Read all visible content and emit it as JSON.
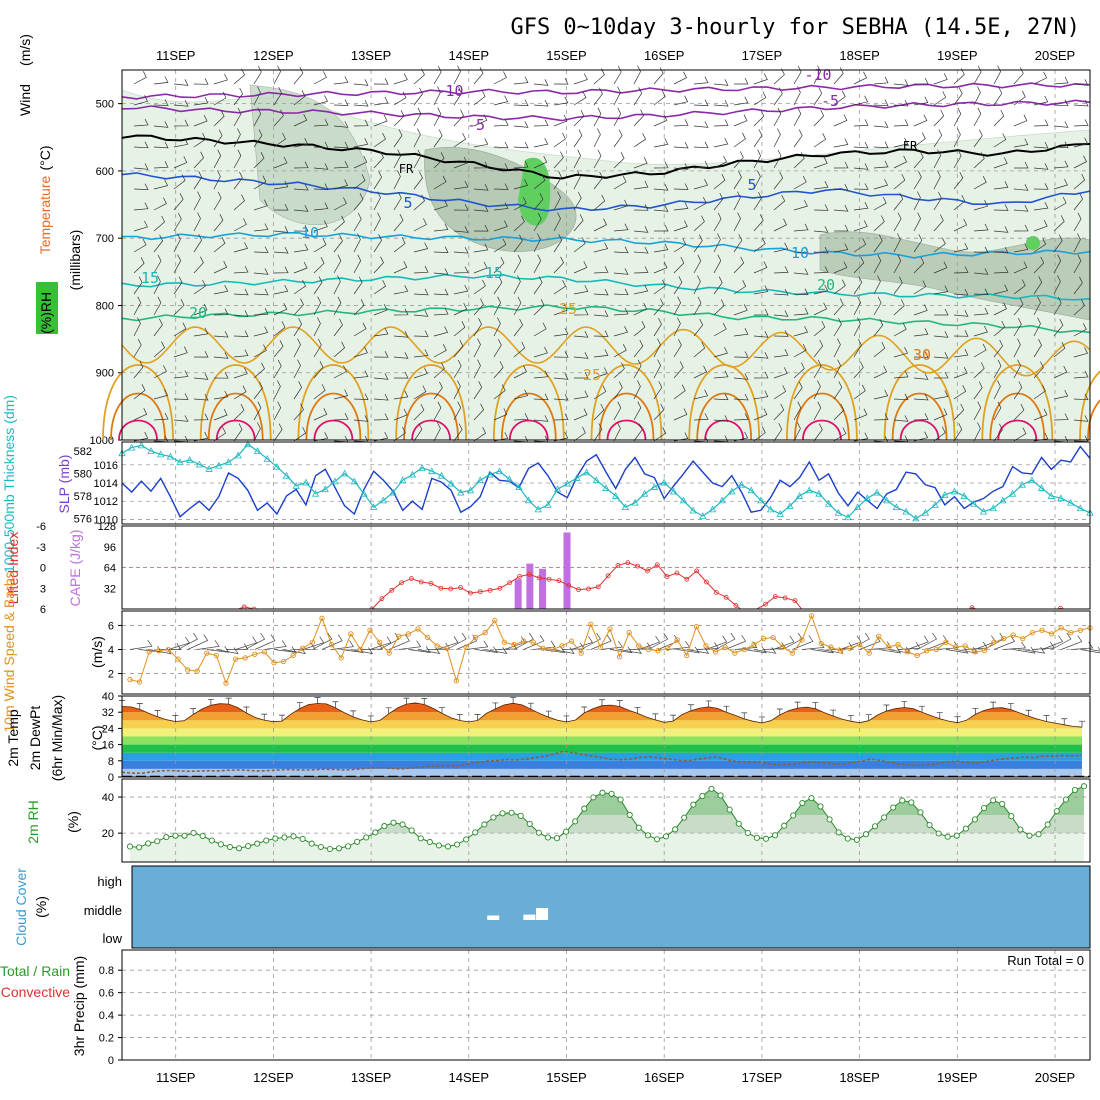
{
  "title": "GFS 0~10day 3-hourly for SEBHA (14.5E, 27N)",
  "date_labels": [
    "11SEP",
    "12SEP",
    "13SEP",
    "14SEP",
    "15SEP",
    "16SEP",
    "17SEP",
    "18SEP",
    "19SEP",
    "20SEP"
  ],
  "colors": {
    "temp_minus10": "#8a2aa8",
    "freezing": "#000000",
    "temp5": "#2255cc",
    "temp10": "#1aa0d8",
    "temp15": "#18b8b8",
    "temp20": "#20b880",
    "temp25": "#e0a020",
    "temp30": "#e07810",
    "temp35": "#e0106a",
    "rh_fill": "#e6f2e6",
    "slp": "#1a3fcc",
    "thickness": "#20b8c0",
    "li": "#e03030",
    "cape": "#c070e0",
    "wind_speed": "#e09020",
    "cloud": "#6aaed6"
  },
  "chart_data": [
    {
      "type": "line",
      "panel": "upper-air",
      "y_title_parts": [
        "Wind",
        "(m/s)",
        "Temperature",
        "(°C)",
        "RH",
        "(%)"
      ],
      "ylabel": "(millibars)",
      "y_ticks": [
        500,
        600,
        700,
        800,
        900,
        1000
      ],
      "ylim": [
        1000,
        450
      ],
      "contour_labels": [
        "-10",
        "-10",
        "-5",
        "-5",
        "FR",
        "FR",
        "5",
        "5",
        "10",
        "10",
        "15",
        "15",
        "20",
        "20",
        "25",
        "25",
        "30"
      ],
      "series": [
        {
          "name": "-10",
          "values_mb": [
            490,
            488,
            486,
            484,
            482,
            483,
            480,
            478,
            476,
            474,
            473,
            472
          ]
        },
        {
          "name": "-5",
          "values_mb": [
            505,
            510,
            512,
            515,
            520,
            522,
            518,
            512,
            506,
            502,
            500,
            498
          ]
        },
        {
          "name": "FR",
          "values_mb": [
            548,
            555,
            562,
            572,
            590,
            610,
            604,
            588,
            575,
            570,
            575,
            560
          ]
        },
        {
          "name": "5",
          "values_mb": [
            605,
            612,
            620,
            632,
            648,
            658,
            652,
            640,
            628,
            640,
            650,
            630
          ]
        },
        {
          "name": "10",
          "values_mb": [
            700,
            696,
            694,
            698,
            700,
            702,
            706,
            714,
            722,
            726,
            722,
            720
          ]
        },
        {
          "name": "15",
          "values_mb": [
            770,
            768,
            764,
            760,
            756,
            760,
            770,
            778,
            782,
            785,
            786,
            790
          ]
        },
        {
          "name": "20",
          "values_mb": [
            820,
            815,
            812,
            808,
            805,
            802,
            808,
            818,
            820,
            825,
            830,
            840
          ]
        }
      ]
    },
    {
      "type": "line",
      "panel": "slp-thickness",
      "ylabel_left": "1000-500mb Thickness (dm)",
      "ylabel_right": "SLP (mb)",
      "y_ticks_left": [
        576,
        578,
        580,
        582
      ],
      "y_ticks_right": [
        1010,
        1012,
        1014,
        1016
      ],
      "series": [
        {
          "name": "SLP",
          "values": [
            1014.0,
            1013.0,
            1014.2,
            1013.1,
            1014.5,
            1012.5,
            1010.3,
            1011.2,
            1012.0,
            1011.0,
            1012.5,
            1015.1,
            1014.5,
            1013.2,
            1011.0,
            1011.8,
            1010.6,
            1012.6,
            1013.3,
            1011.6,
            1014.8,
            1015.5,
            1013.5,
            1011.5,
            1010.6,
            1013.3,
            1015.3,
            1014.3,
            1013.1,
            1011.0,
            1012.0,
            1011.1,
            1014.5,
            1014.1,
            1013.2,
            1010.8,
            1011.4,
            1012.5,
            1015.2,
            1014.3,
            1014.2,
            1013.5,
            1015.6,
            1016.2,
            1014.8,
            1013.0,
            1012.4,
            1014.7,
            1016.4,
            1017.1,
            1015.2,
            1013.4,
            1015.5,
            1016.8,
            1015.0,
            1014.6,
            1012.3,
            1013.7,
            1015.0,
            1016.4,
            1015.2,
            1014.0,
            1013.6,
            1014.8,
            1013.0,
            1010.8,
            1011.0,
            1012.4,
            1014.3,
            1013.6,
            1014.6,
            1016.3,
            1014.3,
            1015.0,
            1012.9,
            1011.5,
            1013.0,
            1012.1,
            1011.2,
            1012.8,
            1013.3,
            1015.2,
            1015.0,
            1013.8,
            1013.5,
            1011.6,
            1012.5,
            1011.2,
            1011.9,
            1012.3,
            1013.1,
            1013.6,
            1015.8,
            1015.1,
            1015.0,
            1016.8,
            1015.5,
            1016.5,
            1016.3,
            1018.0,
            1016.7
          ]
        },
        {
          "name": "Thickness",
          "values": [
            581.8,
            582.3,
            582.5,
            582.0,
            581.7,
            581.5,
            581.0,
            581.2,
            580.8,
            580.4,
            580.7,
            581.0,
            581.6,
            582.6,
            582.0,
            581.3,
            580.6,
            579.8,
            578.9,
            579.2,
            578.2,
            578.6,
            579.3,
            580.0,
            579.3,
            578.2,
            577.0,
            577.6,
            578.3,
            579.4,
            579.9,
            580.5,
            580.2,
            579.8,
            579.1,
            578.3,
            578.5,
            579.4,
            579.9,
            580.2,
            579.5,
            578.8,
            577.6,
            576.8,
            577.2,
            578.6,
            579.1,
            579.6,
            580.1,
            579.4,
            578.7,
            578.0,
            577.0,
            577.4,
            578.2,
            578.8,
            579.2,
            578.4,
            577.6,
            576.7,
            576.2,
            576.8,
            577.6,
            578.4,
            579.0,
            578.5,
            577.6,
            576.8,
            576.4,
            577.1,
            578.0,
            578.5,
            578.2,
            577.3,
            576.5,
            576.1,
            577.0,
            577.8,
            578.3,
            577.6,
            577.0,
            576.6,
            576.0,
            576.5,
            577.2,
            578.1,
            578.4,
            578.0,
            577.3,
            576.6,
            576.9,
            577.6,
            578.2,
            579.0,
            579.4,
            578.7,
            578.0,
            577.8,
            577.4,
            576.9,
            576.5
          ]
        }
      ]
    },
    {
      "type": "bar",
      "panel": "stability",
      "ylabel_left": "Lifted Index",
      "ylabel_right": "CAPE (J/kg)",
      "li_ticks": [
        "-6",
        "-3",
        "0",
        "3",
        "6"
      ],
      "cape_ticks": [
        "32",
        "64",
        "96",
        "128"
      ],
      "cape_bars": [
        {
          "x_day": 4.5,
          "value": 46
        },
        {
          "x_day": 4.62,
          "value": 70
        },
        {
          "x_day": 4.75,
          "value": 62
        },
        {
          "x_day": 5.0,
          "value": 118
        }
      ],
      "li_series": {
        "name": "Lifted Index",
        "x_start": 1.5,
        "values": [
          6.5,
          6.2,
          5.7,
          6.0,
          6.4,
          6.5,
          6.8,
          6.6,
          6.5,
          6.3,
          6.2,
          6.4,
          6.8,
          6.5,
          6.3,
          6.0,
          4.5,
          3.3,
          2.2,
          1.6,
          2.1,
          2.3,
          3.0,
          3.1,
          2.9,
          3.7,
          3.5,
          3.3,
          3.0,
          2.2,
          1.3,
          1.0,
          1.5,
          1.7,
          1.9,
          2.6,
          3.2,
          3.1,
          2.8,
          1.2,
          -0.3,
          -0.7,
          -0.2,
          0.5,
          -0.4,
          1.3,
          0.8,
          1.7,
          0.5,
          2.1,
          3.6,
          4.3,
          5.5,
          6.6,
          6.1,
          5.3,
          4.2,
          4.4,
          4.8,
          6.6,
          7.1,
          7.2,
          7.4,
          6.6,
          6.4,
          6.9,
          7.0,
          6.7,
          6.6,
          6.8,
          6.9,
          6.5,
          6.4,
          6.3,
          6.6,
          6.6,
          5.8,
          6.3,
          6.9,
          6.5,
          6.7,
          6.4,
          6.2,
          6.8,
          6.3,
          5.9,
          6.2,
          6.6,
          6.9
        ]
      }
    },
    {
      "type": "line",
      "panel": "10m-wind",
      "ylabel_left": "10m Wind Speed & Barbs",
      "ylabel_right": "(m/s)",
      "y_ticks": [
        "2",
        "4",
        "6"
      ],
      "series": [
        {
          "name": "10m Wind Speed",
          "values": [
            1.5,
            1.3,
            3.8,
            3.9,
            4.0,
            3.2,
            2.3,
            2.2,
            3.7,
            3.5,
            1.2,
            3.2,
            3.3,
            3.6,
            3.8,
            2.9,
            3.0,
            3.5,
            4.1,
            4.6,
            6.6,
            4.4,
            3.3,
            5.3,
            4.0,
            5.6,
            4.6,
            3.7,
            5.1,
            5.3,
            5.7,
            5.0,
            4.3,
            4.1,
            1.4,
            4.2,
            5.0,
            5.4,
            6.4,
            4.6,
            4.4,
            4.7,
            4.6,
            4.1,
            4.0,
            4.3,
            4.7,
            3.7,
            6.1,
            4.2,
            5.7,
            3.4,
            5.4,
            4.3,
            4.0,
            3.9,
            4.1,
            4.8,
            3.5,
            5.9,
            4.3,
            3.8,
            4.2,
            3.7,
            4.0,
            4.4,
            4.9,
            5.0,
            4.2,
            3.7,
            4.8,
            6.8,
            4.5,
            4.2,
            3.9,
            4.1,
            4.4,
            3.7,
            5.1,
            4.2,
            4.4,
            3.8,
            3.5,
            3.9,
            4.0,
            4.6,
            4.2,
            4.3,
            3.8,
            3.9,
            4.6,
            4.9,
            5.2,
            4.9,
            5.4,
            5.6,
            5.3,
            5.8,
            5.4,
            5.6,
            5.8
          ]
        }
      ]
    },
    {
      "type": "area",
      "panel": "2m-temperature",
      "ylabel_left": "2m Temp 2m DewPt (6hr Min/Max)",
      "ylabel_right": "(°C)",
      "y_ticks": [
        "0",
        "8",
        "16",
        "24",
        "32",
        "40"
      ],
      "series": [
        {
          "name": "2m Temp",
          "values": [
            34.8,
            34.6,
            33.4,
            31.5,
            29.8,
            28.3,
            27.4,
            27.8,
            30.8,
            33.6,
            35.4,
            36.2,
            36.0,
            34.3,
            31.6,
            29.4,
            28.1,
            27.3,
            27.6,
            31.0,
            33.8,
            35.8,
            36.3,
            36.1,
            34.2,
            31.8,
            29.7,
            28.2,
            27.2,
            27.9,
            31.2,
            34.1,
            36.0,
            36.6,
            35.8,
            33.9,
            31.4,
            29.3,
            27.9,
            27.2,
            27.9,
            31.4,
            33.6,
            35.6,
            36.4,
            35.6,
            33.5,
            31.3,
            29.6,
            28.0,
            27.2,
            28.1,
            31.6,
            33.8,
            35.2,
            35.5,
            34.8,
            33.0,
            31.4,
            29.6,
            28.2,
            27.0,
            27.6,
            30.8,
            32.7,
            34.0,
            34.6,
            33.9,
            32.0,
            30.4,
            28.7,
            27.5,
            26.7,
            27.8,
            30.6,
            32.8,
            34.0,
            34.5,
            33.8,
            31.8,
            30.1,
            28.6,
            27.5,
            26.8,
            27.8,
            30.6,
            32.6,
            33.8,
            34.3,
            33.8,
            32.0,
            30.3,
            28.8,
            27.6,
            26.8,
            28.0,
            30.9,
            32.9,
            34.0,
            34.2,
            33.3,
            31.6,
            30.0,
            28.6,
            27.4,
            26.6,
            25.8,
            25.0,
            24.6
          ]
        },
        {
          "name": "2m DewPt",
          "values": [
            2.3,
            2.0,
            1.8,
            2.5,
            3.0,
            3.2,
            3.0,
            2.8,
            2.9,
            3.1,
            3.0,
            3.3,
            3.5,
            3.3,
            3.0,
            3.1,
            3.4,
            3.7,
            3.6,
            3.4,
            3.6,
            3.8,
            3.8,
            3.5,
            3.7,
            4.1,
            4.5,
            4.6,
            4.3,
            4.0,
            4.4,
            4.8,
            5.3,
            5.5,
            5.6,
            5.5,
            6.3,
            7.1,
            7.8,
            8.1,
            8.6,
            8.4,
            8.8,
            9.5,
            10.2,
            11.2,
            12.8,
            12.0,
            11.0,
            10.3,
            9.6,
            8.8,
            8.5,
            8.9,
            9.7,
            10.0,
            9.4,
            8.8,
            8.3,
            8.0,
            8.8,
            9.5,
            9.9,
            8.6,
            7.6,
            7.5,
            7.4,
            6.8,
            6.2,
            6.0,
            6.4,
            7.2,
            7.4,
            7.1,
            6.6,
            6.3,
            6.9,
            7.8,
            8.8,
            8.2,
            7.2,
            6.4,
            6.0,
            5.7,
            6.1,
            6.6,
            7.4,
            7.8,
            7.1,
            6.8,
            7.5,
            8.4,
            9.0,
            9.4,
            9.8,
            9.5,
            10.3,
            10.2,
            10.6,
            10.4,
            10.8
          ]
        }
      ]
    },
    {
      "type": "area",
      "panel": "2m-rh",
      "ylabel_left": "2m RH",
      "ylabel_right": "(%)",
      "y_ticks": [
        "20",
        "40"
      ],
      "series": [
        {
          "name": "2m RH",
          "values": [
            12.6,
            12.1,
            14.3,
            15.5,
            17.8,
            18.6,
            18.6,
            20.1,
            18.4,
            15.9,
            13.8,
            12.3,
            11.6,
            12.8,
            14.2,
            15.9,
            17.0,
            17.6,
            18.2,
            16.8,
            14.2,
            12.3,
            11.2,
            11.6,
            12.7,
            15.2,
            17.6,
            20.4,
            23.9,
            25.8,
            24.8,
            21.5,
            17.1,
            15.1,
            13.2,
            12.6,
            13.7,
            16.5,
            20.4,
            24.8,
            28.7,
            31.0,
            31.3,
            29.6,
            25.1,
            20.2,
            17.6,
            17.2,
            20.8,
            26.5,
            33.6,
            39.8,
            42.4,
            41.8,
            38.6,
            30.1,
            23.0,
            18.8,
            16.6,
            18.2,
            22.1,
            28.6,
            35.8,
            40.6,
            44.6,
            40.9,
            33.0,
            25.2,
            20.1,
            17.4,
            16.9,
            18.8,
            24.1,
            29.8,
            36.7,
            39.4,
            34.8,
            27.6,
            20.4,
            17.0,
            16.3,
            19.4,
            23.8,
            28.7,
            34.2,
            38.1,
            37.0,
            31.5,
            24.5,
            19.8,
            18.0,
            18.6,
            22.5,
            27.6,
            33.9,
            38.2,
            36.2,
            29.4,
            22.0,
            18.6,
            19.4,
            24.8,
            32.2,
            38.6,
            43.9,
            46.0
          ]
        }
      ]
    },
    {
      "type": "bar",
      "panel": "cloud-cover",
      "ylabel_left": "Cloud Cover",
      "ylabel_right": "(%)",
      "levels": [
        "high",
        "middle",
        "low"
      ],
      "middle_cloud_blocks": [
        {
          "x_day": 4.25,
          "value": 5
        },
        {
          "x_day": 4.62,
          "value": 8
        },
        {
          "x_day": 4.75,
          "value": 30
        }
      ]
    },
    {
      "type": "bar",
      "panel": "precipitation",
      "ylabel_left_total": "Total / Rain",
      "ylabel_left_conv": "Convective",
      "ylabel_right": "3hr Precip (mm)",
      "y_ticks": [
        "0",
        "0.2",
        "0.4",
        "0.6",
        "0.8"
      ],
      "values": [],
      "run_total_label": "Run Total = 0"
    }
  ]
}
